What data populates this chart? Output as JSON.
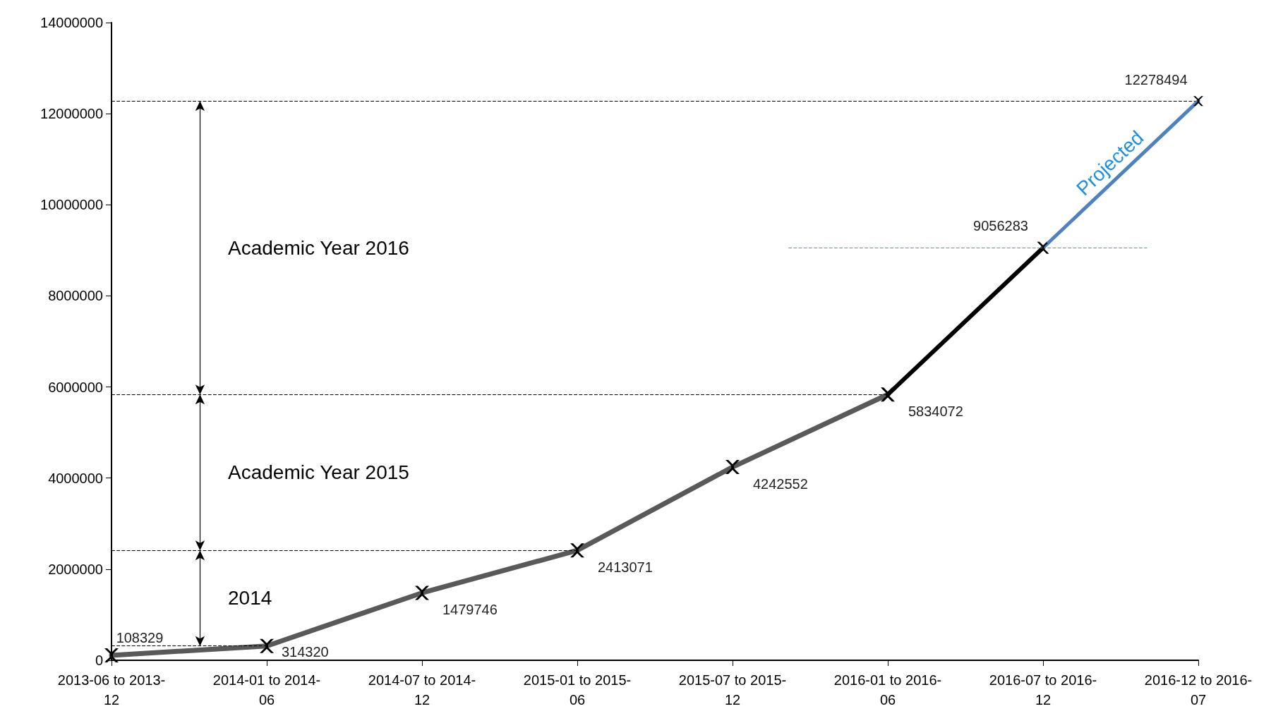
{
  "chart_data": {
    "type": "line",
    "categories": [
      "2013-06 to 2013-12",
      "2014-01 to 2014-06",
      "2014-07 to 2014-12",
      "2015-01 to 2015-06",
      "2015-07 to 2015-12",
      "2016-01 to 2016-06",
      "2016-07 to 2016-12",
      "2016-12 to 2016-07"
    ],
    "series": [
      {
        "color": "#595959",
        "values": [
          108329,
          314320,
          1479746,
          2413071,
          4242552,
          5834072,
          null,
          null
        ],
        "value_labels": [
          "108329",
          "314320",
          "1479746",
          "2413071",
          "4242552",
          "5834072",
          null,
          null
        ]
      },
      {
        "color": "#000000",
        "values": [
          null,
          null,
          null,
          null,
          null,
          5834072,
          9056283,
          null
        ],
        "value_labels": [
          null,
          null,
          null,
          null,
          null,
          null,
          "9056283",
          null
        ]
      },
      {
        "name": "Projected",
        "color": "#4f81bd",
        "values": [
          null,
          null,
          null,
          null,
          null,
          null,
          9056283,
          12278494
        ],
        "value_labels": [
          null,
          null,
          null,
          null,
          null,
          null,
          null,
          "12278494"
        ]
      }
    ],
    "ylim": [
      0,
      14000000
    ],
    "yticks": [
      0,
      2000000,
      4000000,
      6000000,
      8000000,
      10000000,
      12000000,
      14000000
    ],
    "grid": false,
    "legend": false,
    "marker": "cross",
    "line_style": "solid",
    "ref_lines": [
      {
        "axis": "y",
        "value": 314320,
        "line_style": "dashed"
      },
      {
        "axis": "y",
        "value": 2413071,
        "line_style": "dashed"
      },
      {
        "axis": "y",
        "value": 5834072,
        "line_style": "dashed"
      },
      {
        "axis": "y",
        "value": 12278494,
        "line_style": "dashed"
      },
      {
        "axis": "y",
        "value": 9056283,
        "color": "#3a9ad9",
        "line_style": "dashed"
      }
    ],
    "annotations": [
      "2014",
      "Academic Year 2015",
      "Academic Year 2016"
    ]
  }
}
